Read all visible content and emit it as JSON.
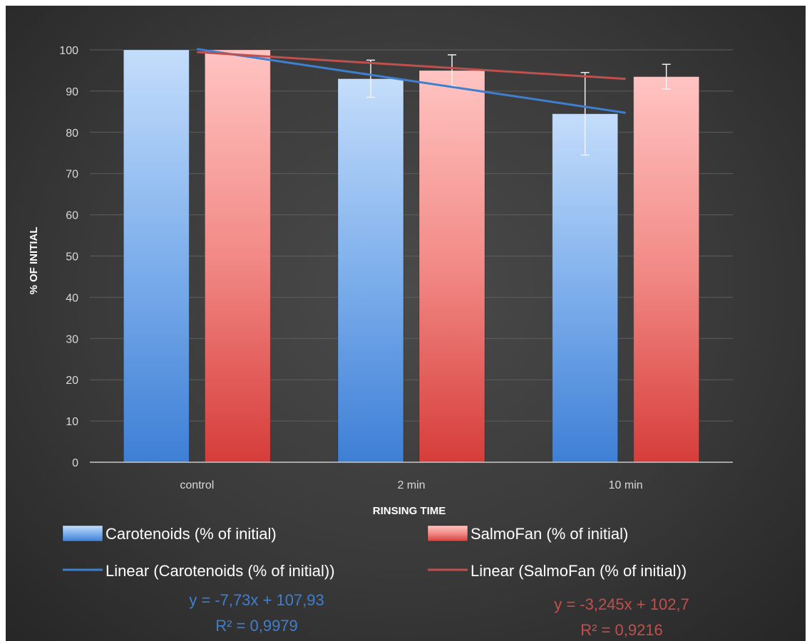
{
  "chart_data": {
    "type": "bar",
    "categories": [
      "control",
      "2 min",
      "10 min"
    ],
    "xlabel": "RINSING TIME",
    "ylabel": "% OF INITIAL",
    "ylim": [
      0,
      100
    ],
    "yticks": [
      0,
      10,
      20,
      30,
      40,
      50,
      60,
      70,
      80,
      90,
      100
    ],
    "grid": true,
    "series": [
      {
        "name": "Carotenoids (% of initial)",
        "values": [
          100,
          93,
          84.5
        ],
        "error": [
          0,
          4.5,
          10
        ],
        "color": "#5b9bd5"
      },
      {
        "name": "SalmoFan (% of initial)",
        "values": [
          100,
          95,
          93.5
        ],
        "error": [
          0,
          3.8,
          3
        ],
        "color": "#e87c7c"
      }
    ],
    "trendlines": [
      {
        "name": "Linear (Carotenoids (% of initial))",
        "slope": -7.73,
        "intercept": 107.93,
        "equation": "y = -7,73x + 107,93",
        "r2": "R² = 0,9979",
        "color": "#3f7fcf"
      },
      {
        "name": "Linear (SalmoFan (% of initial))",
        "slope": -3.245,
        "intercept": 102.7,
        "equation": "y = -3,245x + 102,7",
        "r2": "R² = 0,9216",
        "color": "#c0504d"
      }
    ],
    "legend_position": "bottom"
  }
}
